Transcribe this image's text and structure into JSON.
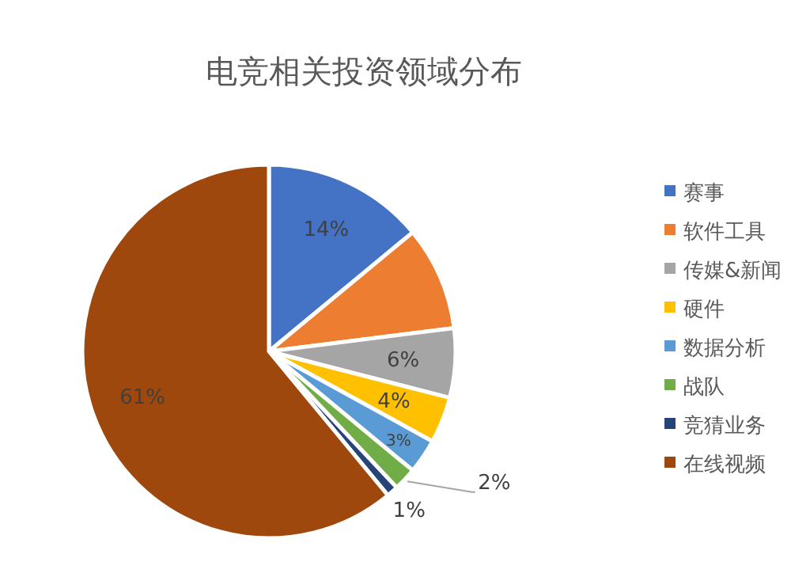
{
  "chart_data": {
    "type": "pie",
    "title": "电竞相关投资领域分布",
    "categories": [
      "赛事",
      "软件工具",
      "传媒&新闻",
      "硬件",
      "数据分析",
      "战队",
      "竞猜业务",
      "在线视频"
    ],
    "values": [
      14,
      9,
      6,
      4,
      3,
      2,
      1,
      61
    ],
    "colors": [
      "#4472c4",
      "#ed7d31",
      "#a5a5a5",
      "#ffc000",
      "#5b9bd5",
      "#70ad47",
      "#264478",
      "#9e480e"
    ],
    "value_labels": [
      "14%",
      null,
      "6%",
      "4%",
      "3%",
      "2%",
      "1%",
      "61%"
    ],
    "legend": "right"
  }
}
